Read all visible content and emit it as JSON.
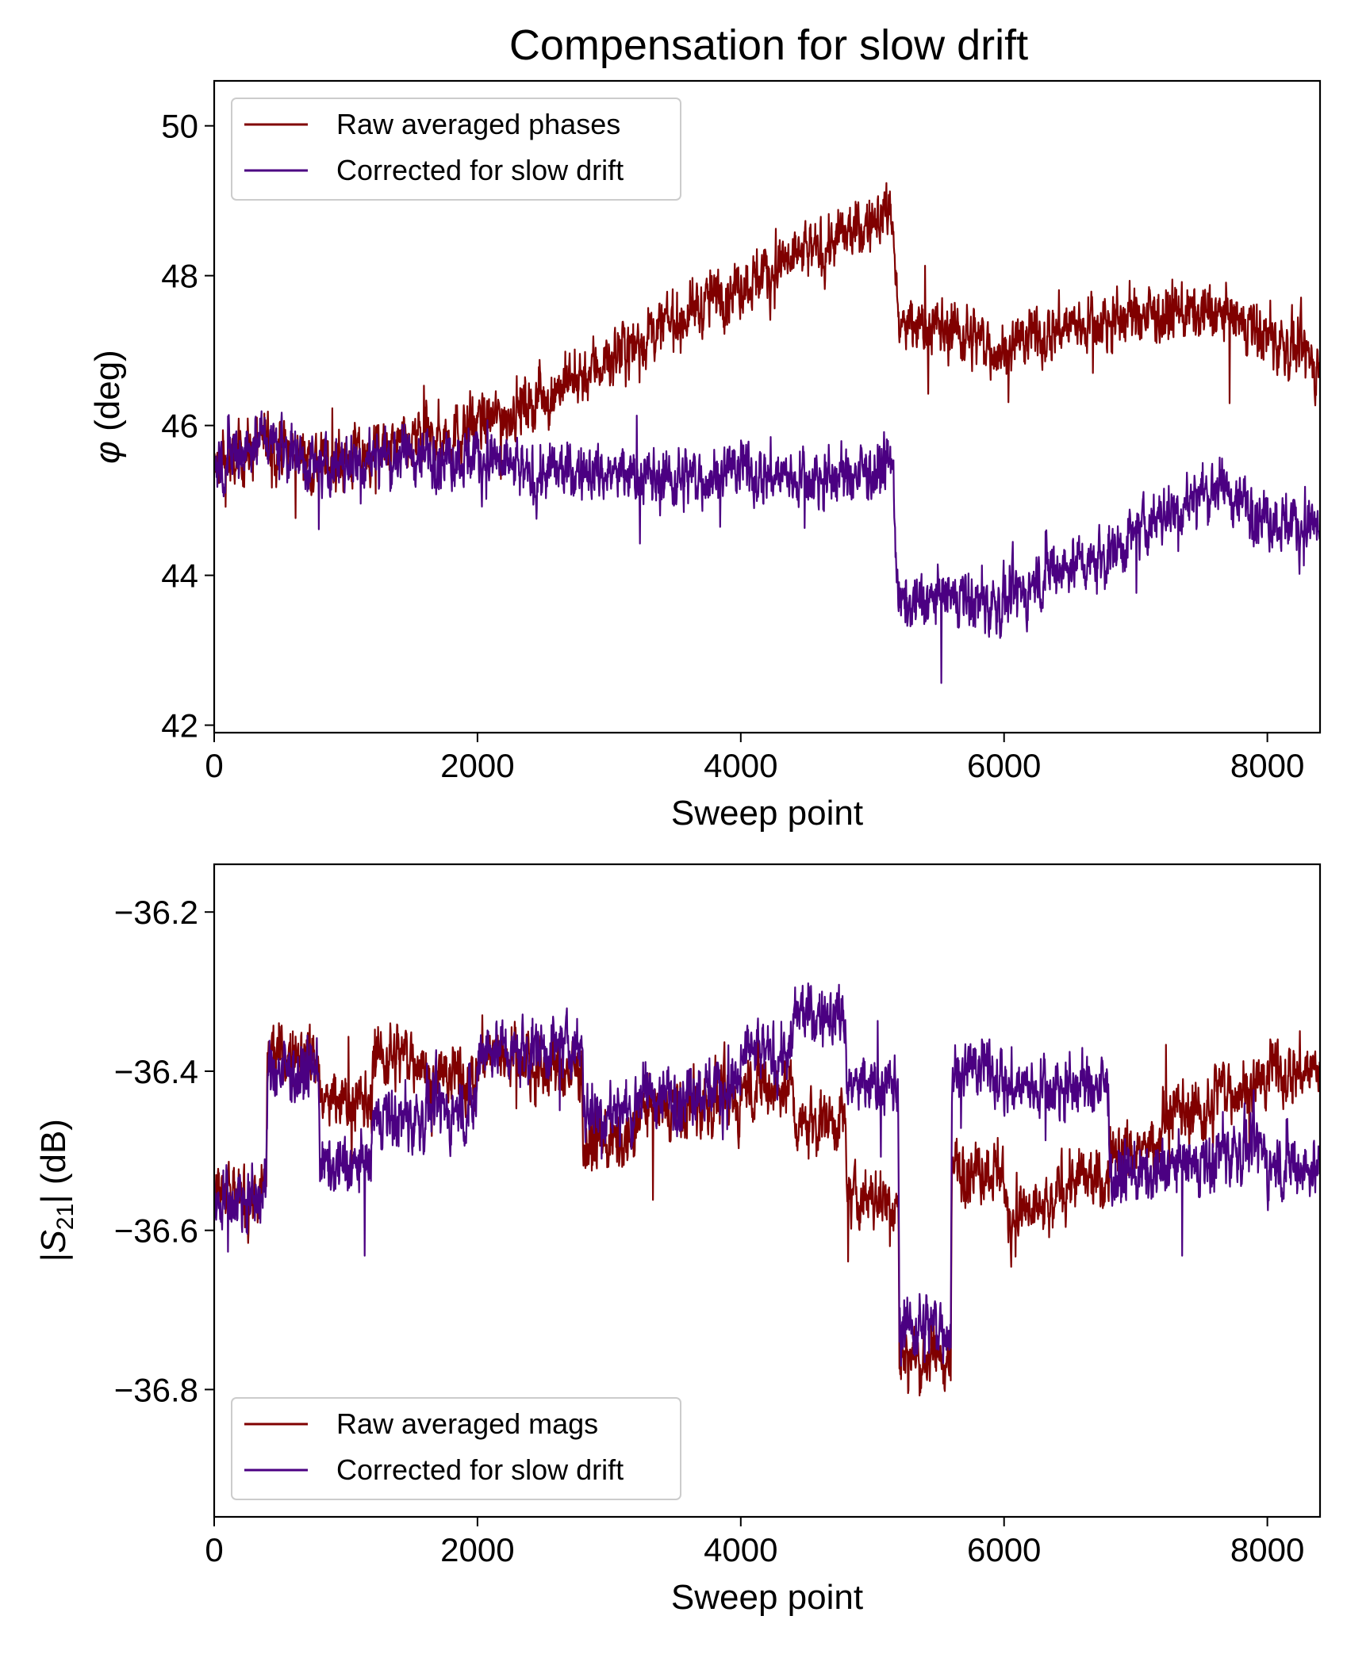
{
  "figure": {
    "title": "Compensation for slow drift"
  },
  "chart_data": [
    {
      "type": "line",
      "title": "Compensation for slow drift",
      "xlabel": "Sweep point",
      "ylabel_main": "φ",
      "ylabel_unit": " (deg)",
      "xlim": [
        0,
        8400
      ],
      "ylim": [
        41.9,
        50.6
      ],
      "xticks": [
        0,
        2000,
        4000,
        6000,
        8000
      ],
      "xtick_labels": [
        "0",
        "2000",
        "4000",
        "6000",
        "8000"
      ],
      "yticks": [
        42,
        44,
        46,
        48,
        50
      ],
      "ytick_labels": [
        "42",
        "44",
        "46",
        "48",
        "50"
      ],
      "grid": false,
      "legend_position": "top-left",
      "num_points": 8400,
      "noise_amplitude": 0.55,
      "series": [
        {
          "name": "Raw averaged phases",
          "color": "#800000",
          "trend_x": [
            0,
            400,
            800,
            1200,
            1600,
            2000,
            2400,
            2800,
            3200,
            3600,
            4000,
            4400,
            4800,
            5150,
            5200,
            5600,
            6000,
            6400,
            6800,
            7200,
            7600,
            8000,
            8400
          ],
          "trend_y": [
            45.4,
            45.8,
            45.5,
            45.6,
            45.8,
            46.0,
            46.3,
            46.7,
            47.1,
            47.5,
            47.9,
            48.2,
            48.5,
            48.9,
            47.3,
            47.3,
            47.0,
            47.3,
            47.4,
            47.5,
            47.5,
            47.2,
            46.8
          ]
        },
        {
          "name": "Corrected for slow drift",
          "color": "#4b0082",
          "trend_x": [
            0,
            400,
            800,
            1200,
            1600,
            2000,
            2400,
            2800,
            3200,
            3600,
            4000,
            4400,
            4800,
            5150,
            5200,
            5600,
            6000,
            6400,
            6800,
            7200,
            7600,
            8000,
            8400
          ],
          "trend_y": [
            45.4,
            45.9,
            45.4,
            45.6,
            45.6,
            45.6,
            45.3,
            45.4,
            45.3,
            45.3,
            45.4,
            45.3,
            45.3,
            45.5,
            43.6,
            43.7,
            43.6,
            44.1,
            44.3,
            44.8,
            45.2,
            44.8,
            44.6
          ]
        }
      ]
    },
    {
      "type": "line",
      "title": "",
      "xlabel": "Sweep point",
      "ylabel_main": "|S",
      "ylabel_sub": "21",
      "ylabel_rest": "| (dB)",
      "xlim": [
        0,
        8400
      ],
      "ylim": [
        -36.96,
        -36.14
      ],
      "xticks": [
        0,
        2000,
        4000,
        6000,
        8000
      ],
      "xtick_labels": [
        "0",
        "2000",
        "4000",
        "6000",
        "8000"
      ],
      "yticks": [
        -36.2,
        -36.4,
        -36.6,
        -36.8
      ],
      "ytick_labels": [
        "−36.2",
        "−36.4",
        "−36.6",
        "−36.8"
      ],
      "grid": false,
      "legend_position": "bottom-left",
      "num_points": 8400,
      "noise_amplitude": 0.055,
      "series": [
        {
          "name": "Raw averaged mags",
          "color": "#800000",
          "trend_x": [
            0,
            395,
            405,
            795,
            805,
            1195,
            1205,
            1595,
            1605,
            1995,
            2005,
            2395,
            2405,
            2795,
            2805,
            3195,
            3205,
            3595,
            3605,
            3995,
            4005,
            4395,
            4405,
            4795,
            4805,
            5195,
            5205,
            5595,
            5605,
            5995,
            6005,
            6395,
            6405,
            6795,
            6805,
            7195,
            7205,
            7595,
            7605,
            7995,
            8005,
            8400
          ],
          "trend_y": [
            -36.56,
            -36.56,
            -36.38,
            -36.38,
            -36.44,
            -36.44,
            -36.38,
            -36.38,
            -36.41,
            -36.41,
            -36.38,
            -36.38,
            -36.4,
            -36.4,
            -36.49,
            -36.49,
            -36.45,
            -36.45,
            -36.44,
            -36.44,
            -36.42,
            -36.42,
            -36.46,
            -36.46,
            -36.56,
            -36.56,
            -36.76,
            -36.76,
            -36.52,
            -36.52,
            -36.58,
            -36.58,
            -36.54,
            -36.54,
            -36.5,
            -36.5,
            -36.45,
            -36.45,
            -36.42,
            -36.42,
            -36.4,
            -36.4
          ]
        },
        {
          "name": "Corrected for slow drift",
          "color": "#4b0082",
          "trend_x": [
            0,
            395,
            405,
            795,
            805,
            1195,
            1205,
            1595,
            1605,
            1995,
            2005,
            2395,
            2405,
            2795,
            2805,
            3195,
            3205,
            3595,
            3605,
            3995,
            4005,
            4395,
            4405,
            4795,
            4805,
            5195,
            5205,
            5595,
            5605,
            5995,
            6005,
            6395,
            6405,
            6795,
            6805,
            7195,
            7205,
            7595,
            7605,
            7995,
            8005,
            8400
          ],
          "trend_y": [
            -36.56,
            -36.56,
            -36.4,
            -36.4,
            -36.52,
            -36.52,
            -36.46,
            -36.46,
            -36.45,
            -36.45,
            -36.37,
            -36.37,
            -36.37,
            -36.37,
            -36.45,
            -36.45,
            -36.43,
            -36.43,
            -36.42,
            -36.42,
            -36.38,
            -36.38,
            -36.33,
            -36.33,
            -36.42,
            -36.42,
            -36.72,
            -36.72,
            -36.4,
            -36.4,
            -36.42,
            -36.42,
            -36.42,
            -36.42,
            -36.53,
            -36.53,
            -36.52,
            -36.52,
            -36.5,
            -36.5,
            -36.52,
            -36.52
          ]
        }
      ]
    }
  ]
}
